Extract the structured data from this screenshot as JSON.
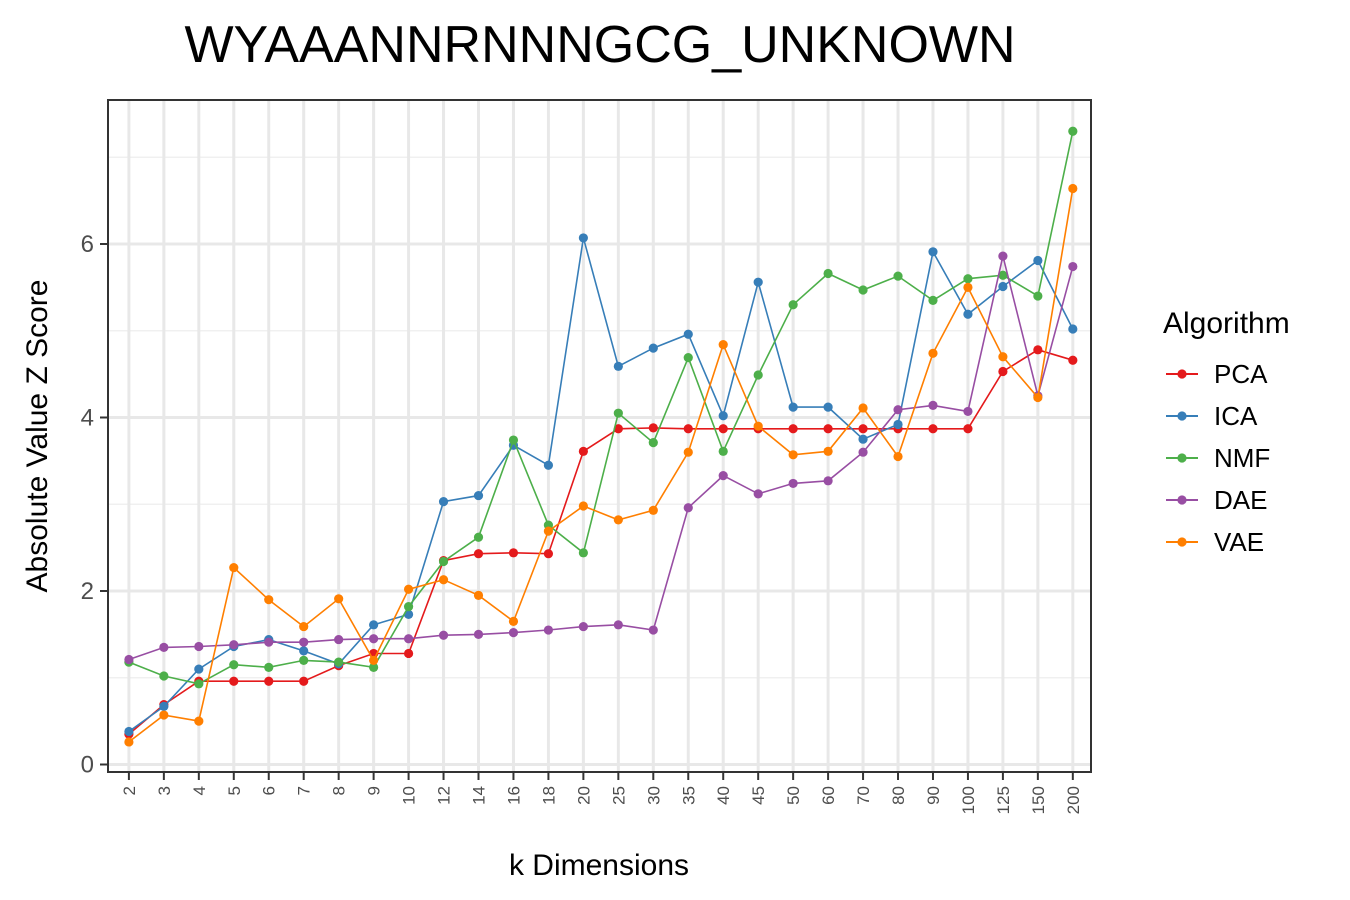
{
  "chart_data": {
    "type": "line",
    "title": "WYAAANNRNNNGCG_UNKNOWN",
    "xlabel": "k Dimensions",
    "ylabel": "Absolute Value Z Score",
    "categories": [
      "2",
      "3",
      "4",
      "5",
      "6",
      "7",
      "8",
      "9",
      "10",
      "12",
      "14",
      "16",
      "18",
      "20",
      "25",
      "30",
      "35",
      "40",
      "45",
      "50",
      "60",
      "70",
      "80",
      "90",
      "100",
      "125",
      "150",
      "200"
    ],
    "ylim": [
      0,
      7.5
    ],
    "yticks": [
      0,
      2,
      4,
      6
    ],
    "grid": true,
    "legend_title": "Algorithm",
    "legend_position": "right",
    "series": [
      {
        "name": "PCA",
        "color": "#e41a1c",
        "values": [
          0.35,
          0.69,
          0.96,
          0.96,
          0.96,
          0.96,
          1.14,
          1.28,
          1.28,
          2.35,
          2.43,
          2.44,
          2.43,
          3.61,
          3.87,
          3.88,
          3.87,
          3.87,
          3.87,
          3.87,
          3.87,
          3.87,
          3.87,
          3.87,
          3.87,
          4.53,
          4.78,
          4.66
        ]
      },
      {
        "name": "ICA",
        "color": "#377eb8",
        "values": [
          0.38,
          0.67,
          1.1,
          1.36,
          1.44,
          1.31,
          1.16,
          1.61,
          1.73,
          3.03,
          3.1,
          3.68,
          3.45,
          6.07,
          4.59,
          4.8,
          4.96,
          4.02,
          5.56,
          4.12,
          4.12,
          3.75,
          3.92,
          5.91,
          5.19,
          5.51,
          5.81,
          5.02
        ]
      },
      {
        "name": "NMF",
        "color": "#4daf4a",
        "values": [
          1.18,
          1.02,
          0.93,
          1.15,
          1.12,
          1.2,
          1.18,
          1.12,
          1.82,
          2.34,
          2.62,
          3.74,
          2.76,
          2.44,
          4.05,
          3.71,
          4.69,
          3.61,
          4.49,
          5.3,
          5.66,
          5.47,
          5.63,
          5.35,
          5.6,
          5.64,
          5.4,
          7.3
        ]
      },
      {
        "name": "DAE",
        "color": "#984ea3",
        "values": [
          1.21,
          1.35,
          1.36,
          1.38,
          1.41,
          1.41,
          1.44,
          1.45,
          1.45,
          1.49,
          1.5,
          1.52,
          1.55,
          1.59,
          1.61,
          1.55,
          2.96,
          3.33,
          3.12,
          3.24,
          3.27,
          3.6,
          4.09,
          4.14,
          4.07,
          5.86,
          4.25,
          5.74
        ]
      },
      {
        "name": "VAE",
        "color": "#ff7f00",
        "values": [
          0.26,
          0.57,
          0.5,
          2.27,
          1.9,
          1.59,
          1.91,
          1.2,
          2.02,
          2.13,
          1.95,
          1.65,
          2.69,
          2.98,
          2.82,
          2.93,
          3.6,
          4.84,
          3.9,
          3.57,
          3.61,
          4.11,
          3.55,
          4.74,
          5.5,
          4.7,
          4.23,
          6.64
        ]
      }
    ]
  }
}
